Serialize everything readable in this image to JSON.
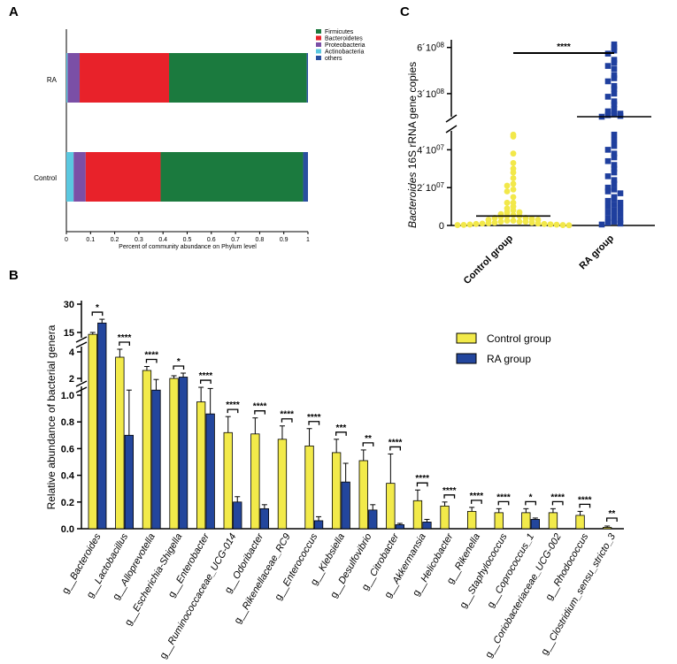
{
  "panels": {
    "a": "A",
    "b": "B",
    "c": "C"
  },
  "chart_data": [
    {
      "type": "bar",
      "orientation": "horizontal-stacked",
      "panel": "A",
      "categories": [
        "RA",
        "Control"
      ],
      "series": [
        {
          "name": "Actinobacteria",
          "color": "#5bc8e0",
          "values": [
            0.005,
            0.03
          ]
        },
        {
          "name": "Proteobacteria",
          "color": "#7b4fa6",
          "values": [
            0.05,
            0.05
          ]
        },
        {
          "name": "Bacteroidetes",
          "color": "#e8222a",
          "values": [
            0.37,
            0.31
          ]
        },
        {
          "name": "Firmicutes",
          "color": "#1b7a3e",
          "values": [
            0.57,
            0.59
          ]
        },
        {
          "name": "others",
          "color": "#2a4fa0",
          "values": [
            0.005,
            0.02
          ]
        }
      ],
      "legend_order": [
        "Firmicutes",
        "Bacteroidetes",
        "Proteobacteria",
        "Actinobacteria",
        "others"
      ],
      "xlabel": "Percent of community abundance on Phylum level",
      "xticks": [
        "0",
        "0.1",
        "0.2",
        "0.3",
        "0.4",
        "0.5",
        "0.6",
        "0.7",
        "0.8",
        "0.9",
        "1"
      ],
      "xlim": [
        0,
        1
      ]
    },
    {
      "type": "scatter",
      "panel": "C",
      "ylabel_italic": "Bacteroides",
      "ylabel_rest": " 16S rRNA gene copies",
      "yticks": [
        {
          "label": "0",
          "value": 0
        },
        {
          "label": "2´10",
          "exp": "07",
          "value": 20000000
        },
        {
          "label": "4´10",
          "exp": "07",
          "value": 40000000
        },
        {
          "label": "3´10",
          "exp": "08",
          "value": 300000000
        },
        {
          "label": "6´10",
          "exp": "08",
          "value": 600000000
        }
      ],
      "axis_break": [
        50000000,
        150000000
      ],
      "groups": [
        {
          "name": "Control group",
          "color": "#f2e84a",
          "marker": "circle",
          "mean": 5000000,
          "values": [
            48000000,
            47000000,
            38000000,
            33000000,
            30000000,
            28000000,
            25000000,
            22000000,
            21000000,
            19000000,
            18000000,
            15000000,
            12000000,
            12000000,
            10000000,
            9000000,
            8000000,
            7000000,
            7000000,
            6000000,
            5500000,
            5000000,
            5000000,
            4500000,
            4000000,
            4000000,
            3500000,
            3000000,
            3000000,
            2500000,
            2500000,
            2000000,
            2000000,
            2000000,
            1500000,
            1500000,
            1200000,
            1000000,
            1000000,
            800000,
            800000,
            600000,
            500000,
            400000,
            300000,
            200000,
            200000,
            100000
          ]
        },
        {
          "name": "RA group",
          "color": "#1f3f9e",
          "marker": "square",
          "mean": 150000000,
          "values": [
            620000000,
            600000000,
            580000000,
            560000000,
            520000000,
            500000000,
            480000000,
            460000000,
            420000000,
            400000000,
            380000000,
            350000000,
            330000000,
            300000000,
            280000000,
            250000000,
            230000000,
            200000000,
            185000000,
            170000000,
            165000000,
            160000000,
            155000000,
            150000000,
            48000000,
            45000000,
            42000000,
            40000000,
            38000000,
            36000000,
            34000000,
            32000000,
            30000000,
            28000000,
            26000000,
            24000000,
            22000000,
            20000000,
            19000000,
            18000000,
            17000000,
            15000000,
            14000000,
            13000000,
            12000000,
            11000000,
            10000000,
            9000000,
            8000000,
            7000000,
            6000000,
            5000000,
            4000000,
            3000000,
            2000000,
            1500000,
            1000000,
            500000
          ]
        }
      ],
      "categories": [
        "Control group",
        "RA group"
      ],
      "significance": "****"
    },
    {
      "type": "bar",
      "panel": "B",
      "ylabel": "Relative abundance of bacterial genera",
      "yticks_low": [
        "0.0",
        "0.2",
        "0.4",
        "0.6",
        "0.8",
        "1.0"
      ],
      "yticks_mid": [
        "2",
        "4"
      ],
      "yticks_high": [
        "15",
        "30"
      ],
      "ylim_low": [
        0,
        1
      ],
      "legend": [
        {
          "name": "Control group",
          "color": "#f2ea4a"
        },
        {
          "name": "RA group",
          "color": "#23469d"
        }
      ],
      "categories": [
        "g__Bacteroides",
        "g__Lactobacillus",
        "g__Alloprevotella",
        "g__Escherichia-Shigella",
        "g__Enterobacter",
        "g__Ruminococcaceae_UCG-014",
        "g__Odoribacter",
        "g__Rikenellaceae_RC9",
        "g__Enterococcus",
        "g__Klebsiella",
        "g__Desulfovibrio",
        "g__Citrobacter",
        "g__Akkermansia",
        "g__Helicobacter",
        "g__Rikenella",
        "g__Staphylococcus",
        "g__Coprococcus_1",
        "g__Coriobacteriaceae_UCG-002",
        "g__Rhodococcus",
        "g__Clostridium_sensu_stricto_3"
      ],
      "series": [
        {
          "name": "Control group",
          "values": [
            14,
            3.6,
            2.6,
            2.0,
            0.95,
            0.72,
            0.71,
            0.67,
            0.62,
            0.57,
            0.51,
            0.34,
            0.21,
            0.17,
            0.13,
            0.12,
            0.12,
            0.12,
            0.1,
            0.01
          ],
          "errors": [
            1.0,
            0.6,
            0.3,
            0.2,
            0.38,
            0.12,
            0.12,
            0.1,
            0.13,
            0.1,
            0.08,
            0.22,
            0.08,
            0.03,
            0.03,
            0.03,
            0.03,
            0.03,
            0.03,
            0.01
          ]
        },
        {
          "name": "RA group",
          "values": [
            20,
            0.7,
            1.12,
            2.1,
            0.86,
            0.2,
            0.15,
            0.0,
            0.06,
            0.35,
            0.14,
            0.03,
            0.05,
            0.0,
            0.0,
            0.0,
            0.07,
            0.0,
            0.0,
            0.0
          ],
          "errors": [
            2.0,
            0.42,
            0.8,
            0.3,
            0.38,
            0.04,
            0.03,
            0.0,
            0.03,
            0.14,
            0.04,
            0.01,
            0.02,
            0.0,
            0.0,
            0.0,
            0.01,
            0.0,
            0.0,
            0.0
          ]
        }
      ],
      "significance": [
        "*",
        "****",
        "****",
        "*",
        "****",
        "****",
        "****",
        "****",
        "****",
        "***",
        "**",
        "****",
        "****",
        "****",
        "****",
        "****",
        "*",
        "****",
        "****",
        "**"
      ]
    }
  ]
}
